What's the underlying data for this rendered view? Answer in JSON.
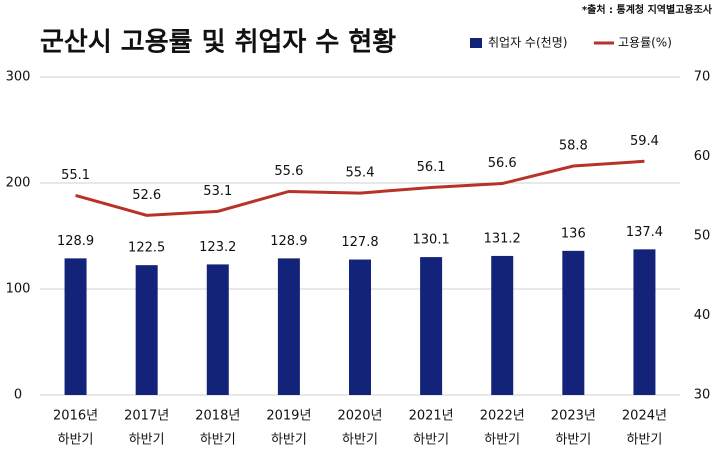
{
  "chart_data": {
    "type": "bar-line",
    "title": "군산시 고용률 및 취업자 수 현황",
    "source": "*출처 : 통계청 지역별고용조사",
    "categories": [
      [
        "2016년",
        "하반기"
      ],
      [
        "2017년",
        "하반기"
      ],
      [
        "2018년",
        "하반기"
      ],
      [
        "2019년",
        "하반기"
      ],
      [
        "2020년",
        "하반기"
      ],
      [
        "2021년",
        "하반기"
      ],
      [
        "2022년",
        "하반기"
      ],
      [
        "2023년",
        "하반기"
      ],
      [
        "2024년",
        "하반기"
      ]
    ],
    "series": [
      {
        "name": "취업자 수(천명)",
        "type": "bar",
        "color": "#14237a",
        "values": [
          128.9,
          122.5,
          123.2,
          128.9,
          127.8,
          130.1,
          131.2,
          136,
          137.4
        ]
      },
      {
        "name": "고용률(%)",
        "type": "line",
        "axis": "y2",
        "color": "#b83228",
        "values": [
          55.1,
          52.6,
          53.1,
          55.6,
          55.4,
          56.1,
          56.6,
          58.8,
          59.4
        ]
      }
    ],
    "ylim": [
      0,
      300
    ],
    "yticks": [
      0,
      100,
      200,
      300
    ],
    "y2lim": [
      30,
      70
    ],
    "y2ticks": [
      30,
      40,
      50,
      60,
      70
    ],
    "grid": true
  }
}
